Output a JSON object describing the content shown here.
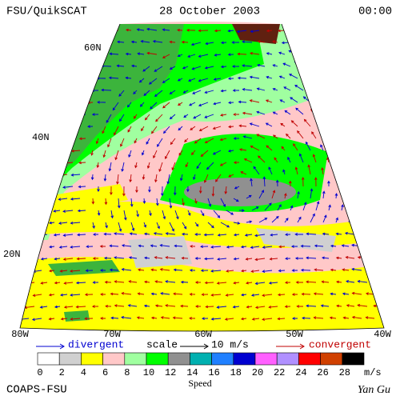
{
  "header": {
    "title": "FSU/QuikSCAT",
    "date": "28 October 2003",
    "time": "00:00"
  },
  "latitude_labels": [
    "60N",
    "40N",
    "20N"
  ],
  "longitude_labels": [
    "80W",
    "70W",
    "60W",
    "50W",
    "40W"
  ],
  "legend": {
    "divergent": "divergent",
    "scale": "scale",
    "scale_value": "10 m/s",
    "convergent": "convergent"
  },
  "colorbar": {
    "labels": [
      0,
      2,
      4,
      6,
      8,
      10,
      12,
      14,
      16,
      18,
      20,
      22,
      24,
      26,
      28
    ],
    "colors": [
      "#ffffff",
      "#d0d0d0",
      "#ffff00",
      "#ffc8c8",
      "#a0ffa0",
      "#00ff00",
      "#909090",
      "#00b0b0",
      "#2080ff",
      "#0000d0",
      "#ff60ff",
      "#b090ff",
      "#ff0000",
      "#d04000",
      "#000000"
    ],
    "unit": "m/s",
    "title": "Speed"
  },
  "footer": {
    "left": "COAPS-FSU",
    "right": "Yan Gu"
  }
}
